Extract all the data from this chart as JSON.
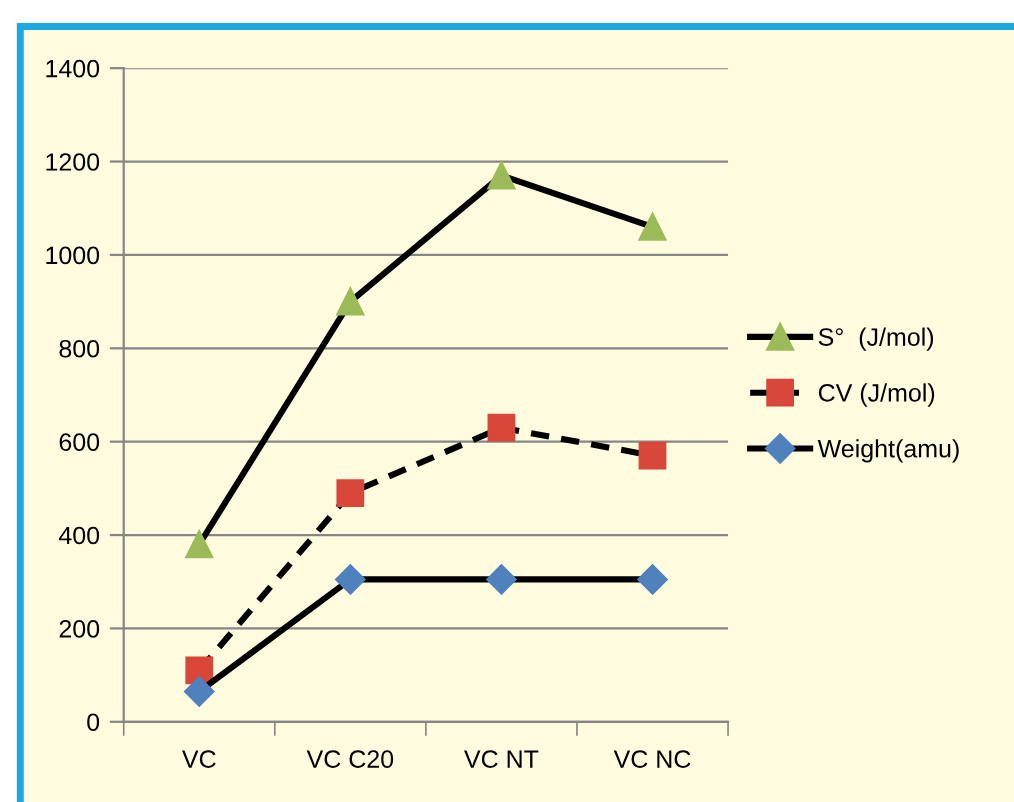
{
  "chart_data": {
    "type": "line",
    "categories": [
      "VC",
      "VC C20",
      "VC NT",
      "VC NC"
    ],
    "series": [
      {
        "name": "S°  (J/mol)",
        "color": "#9bbb59",
        "marker": "triangle",
        "line_style": "solid",
        "values": [
          380,
          900,
          1170,
          1060
        ]
      },
      {
        "name": "CV (J/mol)",
        "color": "#d9463a",
        "marker": "square",
        "line_style": "dashed",
        "values": [
          110,
          490,
          630,
          570
        ]
      },
      {
        "name": "Weight(amu)",
        "color": "#4f81bd",
        "marker": "diamond",
        "line_style": "solid",
        "values": [
          65,
          305,
          305,
          305
        ]
      }
    ],
    "ylim": [
      0,
      1400
    ],
    "yticks": [
      0,
      200,
      400,
      600,
      800,
      1000,
      1200,
      1400
    ],
    "grid": "y",
    "legend": "right"
  }
}
